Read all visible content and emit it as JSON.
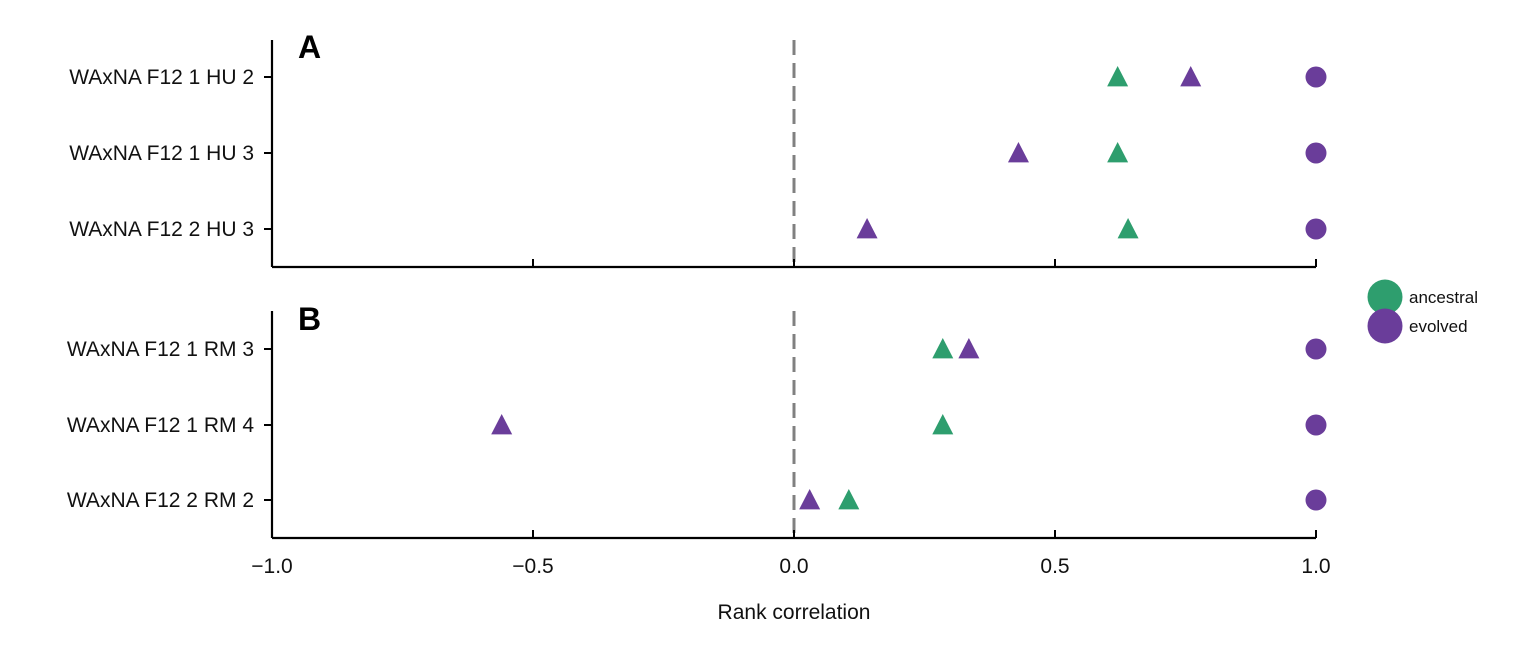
{
  "colors": {
    "ancestral": "#2e9e6e",
    "evolved": "#6a3d9a",
    "zero_line": "#808080",
    "axis": "#000000"
  },
  "legend": {
    "placement": "right",
    "entries": [
      {
        "key": "ancestral",
        "label": "ancestral"
      },
      {
        "key": "evolved",
        "label": "evolved"
      }
    ]
  },
  "chart_data": [
    {
      "type": "scatter",
      "panel": "A",
      "xlabel": "",
      "xlim": [
        -1.0,
        1.0
      ],
      "xticks": [
        -1.0,
        -0.5,
        0.0,
        0.5,
        1.0
      ],
      "show_xtick_labels": false,
      "zero_line": 0.0,
      "categories": [
        "WAxNA F12 1 HU 2",
        "WAxNA F12 1 HU 3",
        "WAxNA F12 2 HU 3"
      ],
      "series": [
        {
          "name": "ancestral",
          "marker": "triangle",
          "values": [
            0.62,
            0.62,
            0.64
          ]
        },
        {
          "name": "evolved",
          "marker": "triangle",
          "values": [
            0.76,
            0.43,
            0.14
          ]
        },
        {
          "name": "evolved",
          "marker": "circle",
          "values": [
            1.0,
            1.0,
            1.0
          ]
        }
      ]
    },
    {
      "type": "scatter",
      "panel": "B",
      "xlabel": "Rank correlation",
      "xlim": [
        -1.0,
        1.0
      ],
      "xticks": [
        -1.0,
        -0.5,
        0.0,
        0.5,
        1.0
      ],
      "xtick_labels": [
        "−1.0",
        "−0.5",
        "0.0",
        "0.5",
        "1.0"
      ],
      "show_xtick_labels": true,
      "zero_line": 0.0,
      "categories": [
        "WAxNA F12 1 RM 3",
        "WAxNA F12 1 RM 4",
        "WAxNA F12 2 RM 2"
      ],
      "series": [
        {
          "name": "ancestral",
          "marker": "triangle",
          "values": [
            0.285,
            0.285,
            0.105
          ]
        },
        {
          "name": "evolved",
          "marker": "triangle",
          "values": [
            0.335,
            -0.56,
            0.03
          ]
        },
        {
          "name": "evolved",
          "marker": "circle",
          "values": [
            1.0,
            1.0,
            1.0
          ]
        }
      ]
    }
  ]
}
